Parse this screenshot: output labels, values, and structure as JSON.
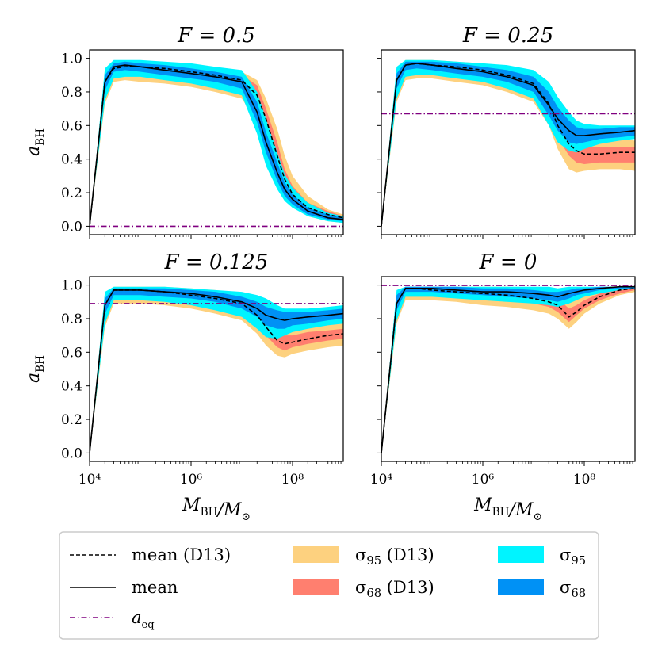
{
  "chart_data": [
    {
      "type": "area",
      "title": "F = 0.5",
      "xscale": "log",
      "xlim": [
        10000,
        1000000000
      ],
      "ylim": [
        -0.05,
        1.05
      ],
      "ylabel": "a_BH",
      "xlabel": "",
      "yticks": [
        "0.0",
        "0.2",
        "0.4",
        "0.6",
        "0.8",
        "1.0"
      ],
      "xticks": [],
      "a_eq": 0.0,
      "x": [
        10000,
        20000,
        30000,
        50000,
        100000,
        300000,
        1000000,
        3000000,
        10000000,
        20000000,
        30000000,
        50000000,
        70000000,
        100000000,
        200000000,
        500000000,
        1000000000
      ],
      "mean": [
        0.0,
        0.86,
        0.95,
        0.96,
        0.95,
        0.93,
        0.91,
        0.89,
        0.86,
        0.68,
        0.5,
        0.32,
        0.22,
        0.16,
        0.09,
        0.05,
        0.04
      ],
      "mean_d13": [
        0.0,
        0.86,
        0.94,
        0.95,
        0.95,
        0.94,
        0.92,
        0.9,
        0.87,
        0.78,
        0.64,
        0.42,
        0.28,
        0.19,
        0.11,
        0.07,
        0.05
      ],
      "sigma95_d13": {
        "lower": [
          0.0,
          0.73,
          0.86,
          0.87,
          0.86,
          0.85,
          0.83,
          0.8,
          0.76,
          0.62,
          0.44,
          0.27,
          0.18,
          0.12,
          0.06,
          0.03,
          0.02
        ],
        "upper": [
          0.0,
          0.93,
          0.98,
          0.98,
          0.98,
          0.97,
          0.96,
          0.94,
          0.92,
          0.87,
          0.76,
          0.58,
          0.42,
          0.3,
          0.18,
          0.1,
          0.07
        ]
      },
      "sigma68_d13": {
        "lower": [
          0.0,
          0.79,
          0.9,
          0.91,
          0.9,
          0.89,
          0.87,
          0.85,
          0.81,
          0.7,
          0.54,
          0.35,
          0.23,
          0.15,
          0.08,
          0.05,
          0.03
        ],
        "upper": [
          0.0,
          0.9,
          0.96,
          0.97,
          0.97,
          0.96,
          0.95,
          0.93,
          0.9,
          0.84,
          0.7,
          0.5,
          0.34,
          0.24,
          0.14,
          0.09,
          0.06
        ]
      },
      "sigma95": {
        "lower": [
          0.0,
          0.75,
          0.88,
          0.89,
          0.89,
          0.87,
          0.85,
          0.82,
          0.78,
          0.55,
          0.36,
          0.22,
          0.15,
          0.11,
          0.06,
          0.03,
          0.02
        ],
        "upper": [
          0.0,
          0.94,
          0.99,
          0.99,
          0.99,
          0.98,
          0.97,
          0.95,
          0.93,
          0.8,
          0.64,
          0.44,
          0.31,
          0.23,
          0.14,
          0.08,
          0.06
        ]
      },
      "sigma68": {
        "lower": [
          0.0,
          0.81,
          0.92,
          0.93,
          0.92,
          0.9,
          0.88,
          0.86,
          0.82,
          0.62,
          0.44,
          0.27,
          0.18,
          0.13,
          0.07,
          0.04,
          0.03
        ],
        "upper": [
          0.0,
          0.9,
          0.97,
          0.98,
          0.97,
          0.96,
          0.94,
          0.92,
          0.89,
          0.74,
          0.56,
          0.38,
          0.26,
          0.19,
          0.11,
          0.07,
          0.05
        ]
      }
    },
    {
      "type": "area",
      "title": "F = 0.25",
      "xscale": "log",
      "xlim": [
        10000,
        1000000000
      ],
      "ylim": [
        -0.05,
        1.05
      ],
      "ylabel": "",
      "xlabel": "",
      "yticks": [],
      "xticks": [],
      "a_eq": 0.67,
      "x": [
        10000,
        20000,
        30000,
        50000,
        100000,
        300000,
        1000000,
        3000000,
        10000000,
        20000000,
        30000000,
        50000000,
        70000000,
        100000000,
        200000000,
        500000000,
        1000000000
      ],
      "mean": [
        0.0,
        0.87,
        0.96,
        0.97,
        0.96,
        0.94,
        0.92,
        0.89,
        0.84,
        0.72,
        0.64,
        0.57,
        0.54,
        0.54,
        0.55,
        0.56,
        0.57
      ],
      "mean_d13": [
        0.0,
        0.87,
        0.96,
        0.97,
        0.96,
        0.95,
        0.93,
        0.9,
        0.85,
        0.73,
        0.6,
        0.49,
        0.45,
        0.43,
        0.43,
        0.44,
        0.44
      ],
      "sigma95_d13": {
        "lower": [
          0.0,
          0.74,
          0.87,
          0.88,
          0.88,
          0.86,
          0.84,
          0.8,
          0.74,
          0.6,
          0.46,
          0.34,
          0.32,
          0.33,
          0.34,
          0.34,
          0.33
        ],
        "upper": [
          0.0,
          0.94,
          0.99,
          0.99,
          0.99,
          0.98,
          0.97,
          0.95,
          0.92,
          0.84,
          0.72,
          0.62,
          0.56,
          0.53,
          0.52,
          0.52,
          0.51
        ]
      },
      "sigma68_d13": {
        "lower": [
          0.0,
          0.8,
          0.91,
          0.92,
          0.92,
          0.9,
          0.88,
          0.85,
          0.8,
          0.66,
          0.53,
          0.42,
          0.38,
          0.37,
          0.38,
          0.38,
          0.38
        ],
        "upper": [
          0.0,
          0.91,
          0.98,
          0.98,
          0.98,
          0.97,
          0.95,
          0.93,
          0.89,
          0.79,
          0.66,
          0.55,
          0.49,
          0.47,
          0.47,
          0.47,
          0.47
        ]
      },
      "sigma95": {
        "lower": [
          0.0,
          0.76,
          0.89,
          0.9,
          0.9,
          0.88,
          0.86,
          0.82,
          0.76,
          0.6,
          0.5,
          0.45,
          0.44,
          0.46,
          0.49,
          0.51,
          0.52
        ],
        "upper": [
          0.0,
          0.95,
          0.99,
          0.99,
          0.99,
          0.98,
          0.97,
          0.96,
          0.93,
          0.86,
          0.77,
          0.68,
          0.63,
          0.61,
          0.6,
          0.6,
          0.6
        ]
      },
      "sigma68": {
        "lower": [
          0.0,
          0.82,
          0.93,
          0.94,
          0.93,
          0.91,
          0.89,
          0.86,
          0.8,
          0.66,
          0.57,
          0.5,
          0.49,
          0.5,
          0.52,
          0.53,
          0.54
        ],
        "upper": [
          0.0,
          0.91,
          0.98,
          0.98,
          0.98,
          0.97,
          0.95,
          0.93,
          0.89,
          0.8,
          0.71,
          0.63,
          0.59,
          0.58,
          0.58,
          0.59,
          0.59
        ]
      }
    },
    {
      "type": "area",
      "title": "F = 0.125",
      "xscale": "log",
      "xlim": [
        10000,
        1000000000
      ],
      "ylim": [
        -0.05,
        1.05
      ],
      "ylabel": "a_BH",
      "xlabel": "M_BH/M_⊙",
      "yticks": [
        "0.0",
        "0.2",
        "0.4",
        "0.6",
        "0.8",
        "1.0"
      ],
      "xticks": [
        "10⁴",
        "10⁶",
        "10⁸"
      ],
      "a_eq": 0.89,
      "x": [
        10000,
        20000,
        30000,
        50000,
        100000,
        300000,
        1000000,
        3000000,
        10000000,
        20000000,
        30000000,
        50000000,
        70000000,
        100000000,
        200000000,
        500000000,
        1000000000
      ],
      "mean": [
        0.0,
        0.88,
        0.97,
        0.97,
        0.97,
        0.96,
        0.95,
        0.93,
        0.9,
        0.86,
        0.82,
        0.8,
        0.79,
        0.8,
        0.81,
        0.82,
        0.83
      ],
      "mean_d13": [
        0.0,
        0.88,
        0.97,
        0.97,
        0.97,
        0.96,
        0.94,
        0.92,
        0.89,
        0.82,
        0.75,
        0.67,
        0.65,
        0.66,
        0.68,
        0.7,
        0.71
      ],
      "sigma95_d13": {
        "lower": [
          0.0,
          0.75,
          0.89,
          0.89,
          0.89,
          0.88,
          0.86,
          0.83,
          0.79,
          0.71,
          0.64,
          0.58,
          0.57,
          0.59,
          0.61,
          0.63,
          0.64
        ],
        "upper": [
          0.0,
          0.95,
          0.99,
          0.99,
          0.99,
          0.99,
          0.98,
          0.97,
          0.95,
          0.91,
          0.86,
          0.8,
          0.77,
          0.76,
          0.76,
          0.77,
          0.78
        ]
      },
      "sigma68_d13": {
        "lower": [
          0.0,
          0.81,
          0.93,
          0.93,
          0.93,
          0.92,
          0.9,
          0.88,
          0.84,
          0.77,
          0.7,
          0.63,
          0.61,
          0.63,
          0.65,
          0.67,
          0.68
        ],
        "upper": [
          0.0,
          0.92,
          0.98,
          0.98,
          0.98,
          0.98,
          0.97,
          0.95,
          0.92,
          0.87,
          0.8,
          0.72,
          0.7,
          0.7,
          0.72,
          0.73,
          0.74
        ]
      },
      "sigma95": {
        "lower": [
          0.0,
          0.77,
          0.91,
          0.91,
          0.91,
          0.9,
          0.88,
          0.85,
          0.81,
          0.74,
          0.69,
          0.68,
          0.7,
          0.72,
          0.74,
          0.76,
          0.77
        ],
        "upper": [
          0.0,
          0.96,
          0.99,
          0.99,
          0.99,
          0.99,
          0.98,
          0.97,
          0.96,
          0.94,
          0.92,
          0.88,
          0.86,
          0.86,
          0.86,
          0.87,
          0.88
        ]
      },
      "sigma68": {
        "lower": [
          0.0,
          0.83,
          0.94,
          0.94,
          0.94,
          0.93,
          0.92,
          0.9,
          0.86,
          0.81,
          0.76,
          0.74,
          0.74,
          0.76,
          0.77,
          0.79,
          0.8
        ],
        "upper": [
          0.0,
          0.92,
          0.98,
          0.98,
          0.98,
          0.98,
          0.97,
          0.96,
          0.93,
          0.9,
          0.87,
          0.85,
          0.84,
          0.84,
          0.84,
          0.85,
          0.86
        ]
      }
    },
    {
      "type": "area",
      "title": "F = 0",
      "xscale": "log",
      "xlim": [
        10000,
        1000000000
      ],
      "ylim": [
        -0.05,
        1.05
      ],
      "ylabel": "",
      "xlabel": "M_BH/M_⊙",
      "yticks": [],
      "xticks": [
        "10⁴",
        "10⁶",
        "10⁸"
      ],
      "a_eq": 0.998,
      "x": [
        10000,
        20000,
        30000,
        50000,
        100000,
        300000,
        1000000,
        3000000,
        10000000,
        20000000,
        30000000,
        50000000,
        70000000,
        100000000,
        200000000,
        500000000,
        1000000000
      ],
      "mean": [
        0.0,
        0.89,
        0.98,
        0.98,
        0.98,
        0.97,
        0.96,
        0.96,
        0.95,
        0.94,
        0.93,
        0.95,
        0.96,
        0.97,
        0.98,
        0.99,
        0.99
      ],
      "mean_d13": [
        0.0,
        0.89,
        0.98,
        0.98,
        0.97,
        0.96,
        0.95,
        0.94,
        0.92,
        0.9,
        0.88,
        0.81,
        0.84,
        0.88,
        0.93,
        0.97,
        0.98
      ],
      "sigma95_d13": {
        "lower": [
          0.0,
          0.77,
          0.91,
          0.91,
          0.91,
          0.9,
          0.88,
          0.87,
          0.85,
          0.83,
          0.8,
          0.74,
          0.78,
          0.83,
          0.89,
          0.94,
          0.96
        ],
        "upper": [
          0.0,
          0.96,
          0.99,
          0.99,
          0.99,
          0.99,
          0.99,
          0.99,
          0.98,
          0.97,
          0.96,
          0.92,
          0.93,
          0.95,
          0.97,
          0.99,
          0.99
        ]
      },
      "sigma68_d13": {
        "lower": [
          0.0,
          0.83,
          0.95,
          0.95,
          0.95,
          0.94,
          0.92,
          0.91,
          0.89,
          0.87,
          0.84,
          0.78,
          0.82,
          0.86,
          0.91,
          0.95,
          0.97
        ],
        "upper": [
          0.0,
          0.93,
          0.99,
          0.99,
          0.99,
          0.98,
          0.98,
          0.97,
          0.96,
          0.94,
          0.92,
          0.86,
          0.88,
          0.91,
          0.95,
          0.98,
          0.99
        ]
      },
      "sigma95": {
        "lower": [
          0.0,
          0.79,
          0.93,
          0.93,
          0.93,
          0.92,
          0.91,
          0.9,
          0.89,
          0.88,
          0.87,
          0.89,
          0.91,
          0.93,
          0.95,
          0.97,
          0.98
        ],
        "upper": [
          0.0,
          0.97,
          0.99,
          0.99,
          0.99,
          0.99,
          0.99,
          0.99,
          0.99,
          0.99,
          0.98,
          0.99,
          0.99,
          0.99,
          0.99,
          0.99,
          0.99
        ]
      },
      "sigma68": {
        "lower": [
          0.0,
          0.85,
          0.96,
          0.96,
          0.96,
          0.95,
          0.94,
          0.93,
          0.92,
          0.91,
          0.9,
          0.92,
          0.94,
          0.95,
          0.97,
          0.98,
          0.98
        ],
        "upper": [
          0.0,
          0.94,
          0.99,
          0.99,
          0.99,
          0.99,
          0.98,
          0.98,
          0.97,
          0.96,
          0.96,
          0.97,
          0.98,
          0.98,
          0.99,
          0.99,
          0.99
        ]
      }
    }
  ],
  "legend": {
    "placement": "bottom",
    "items": [
      {
        "key": "mean_d13",
        "label": "mean (D13)",
        "style": "dashed-line"
      },
      {
        "key": "mean",
        "label": "mean",
        "style": "solid-line"
      },
      {
        "key": "a_eq",
        "label": "a_eq",
        "style": "dashdot-line"
      },
      {
        "key": "sigma95_d13",
        "label": "σ95 (D13)",
        "style": "patch"
      },
      {
        "key": "sigma68_d13",
        "label": "σ68 (D13)",
        "style": "patch"
      },
      {
        "key": "sigma95",
        "label": "σ95",
        "style": "patch"
      },
      {
        "key": "sigma68",
        "label": "σ68",
        "style": "patch"
      }
    ]
  },
  "colors": {
    "sigma95_d13": "#fdd17f",
    "sigma68_d13": "#ff7f6f",
    "sigma95": "#00f4ff",
    "sigma68": "#0091f5",
    "mean": "#000000",
    "mean_d13": "#000000",
    "a_eq": "#800080"
  }
}
